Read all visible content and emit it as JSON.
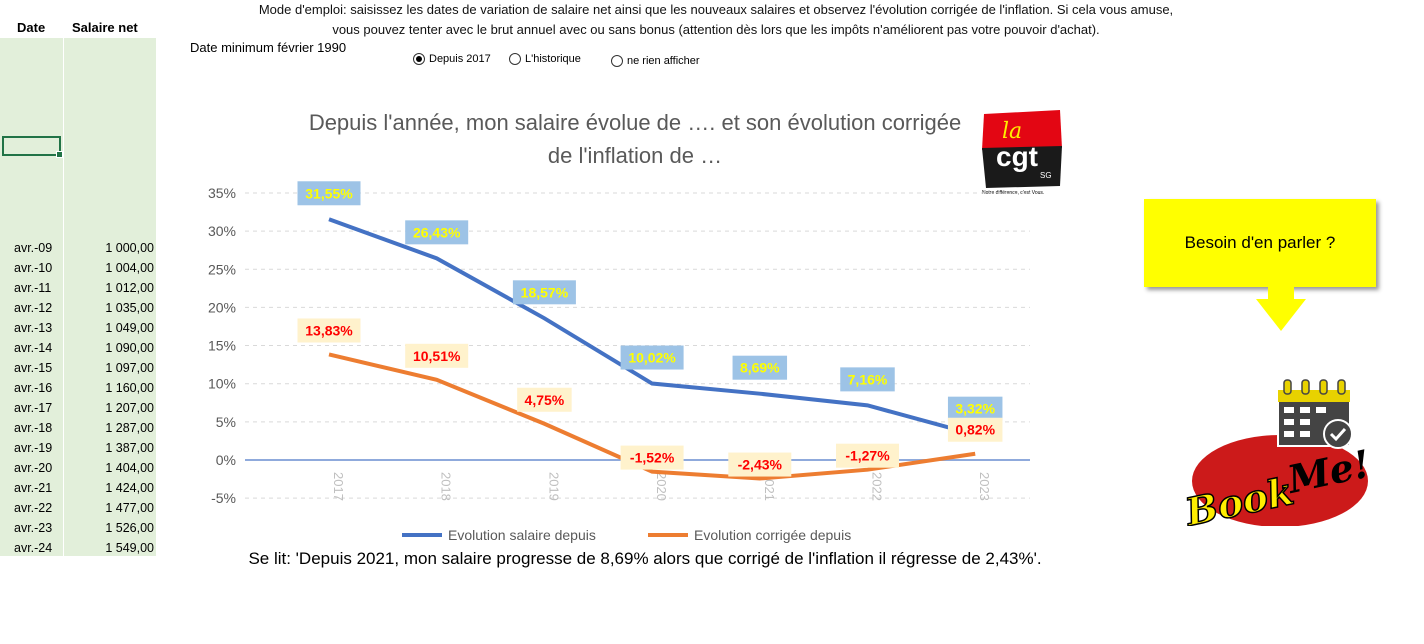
{
  "sheet": {
    "headers": {
      "date": "Date",
      "salary": "Salaire net"
    },
    "rows": [
      [
        "avr.-09",
        "1 000,00"
      ],
      [
        "avr.-10",
        "1 004,00"
      ],
      [
        "avr.-11",
        "1 012,00"
      ],
      [
        "avr.-12",
        "1 035,00"
      ],
      [
        "avr.-13",
        "1 049,00"
      ],
      [
        "avr.-14",
        "1 090,00"
      ],
      [
        "avr.-15",
        "1 097,00"
      ],
      [
        "avr.-16",
        "1 160,00"
      ],
      [
        "avr.-17",
        "1 207,00"
      ],
      [
        "avr.-18",
        "1 287,00"
      ],
      [
        "avr.-19",
        "1 387,00"
      ],
      [
        "avr.-20",
        "1 404,00"
      ],
      [
        "avr.-21",
        "1 424,00"
      ],
      [
        "avr.-22",
        "1 477,00"
      ],
      [
        "avr.-23",
        "1 526,00"
      ],
      [
        "avr.-24",
        "1 549,00"
      ]
    ]
  },
  "instructions": {
    "line1": "Mode d'emploi: saisissez les dates de variation de salaire net ainsi que les nouveaux salaires et observez l'évolution corrigée de l'inflation.  Si cela vous amuse,",
    "line2": "vous pouvez tenter avec le brut annuel avec ou sans bonus (attention dès lors que les impôts n'améliorent pas votre pouvoir d'achat).",
    "min_date": "Date minimum février 1990"
  },
  "options": [
    {
      "label": "Depuis 2017",
      "selected": true
    },
    {
      "label": "L'historique",
      "selected": false
    },
    {
      "label": "ne rien afficher",
      "selected": false
    }
  ],
  "logo": {
    "text": "la cgt SG",
    "tagline": "Notre différence, c'est Vous."
  },
  "chart_data": {
    "type": "line",
    "title": "Depuis l'année, mon salaire évolue de …. et son évolution corrigée de l'inflation de …",
    "categories": [
      "2017",
      "2018",
      "2019",
      "2020",
      "2021",
      "2022",
      "2023"
    ],
    "series": [
      {
        "name": "Evolution salaire depuis",
        "color": "#4472c4",
        "values": [
          31.55,
          26.43,
          18.57,
          10.02,
          8.69,
          7.16,
          3.32
        ],
        "labels": [
          "31,55%",
          "26,43%",
          "18,57%",
          "10,02%",
          "8,69%",
          "7,16%",
          "3,32%"
        ]
      },
      {
        "name": "Evolution corrigée depuis",
        "color": "#ed7d31",
        "values": [
          13.83,
          10.51,
          4.75,
          -1.52,
          -2.43,
          -1.27,
          0.82
        ],
        "labels": [
          "13,83%",
          "10,51%",
          "4,75%",
          "-1,52%",
          "-2,43%",
          "-1,27%",
          "0,82%"
        ]
      }
    ],
    "yticks": [
      "-5%",
      "0%",
      "5%",
      "10%",
      "15%",
      "20%",
      "25%",
      "30%",
      "35%"
    ],
    "ylim": [
      -5,
      35
    ],
    "grid": true,
    "legend": "bottom"
  },
  "caption": "Se lit: 'Depuis 2021, mon salaire progresse de 8,69% alors que corrigé de l'inflation il régresse de 2,43%'.",
  "callout": "Besoin d'en parler ?",
  "bookme": {
    "text": "BookMe!"
  }
}
